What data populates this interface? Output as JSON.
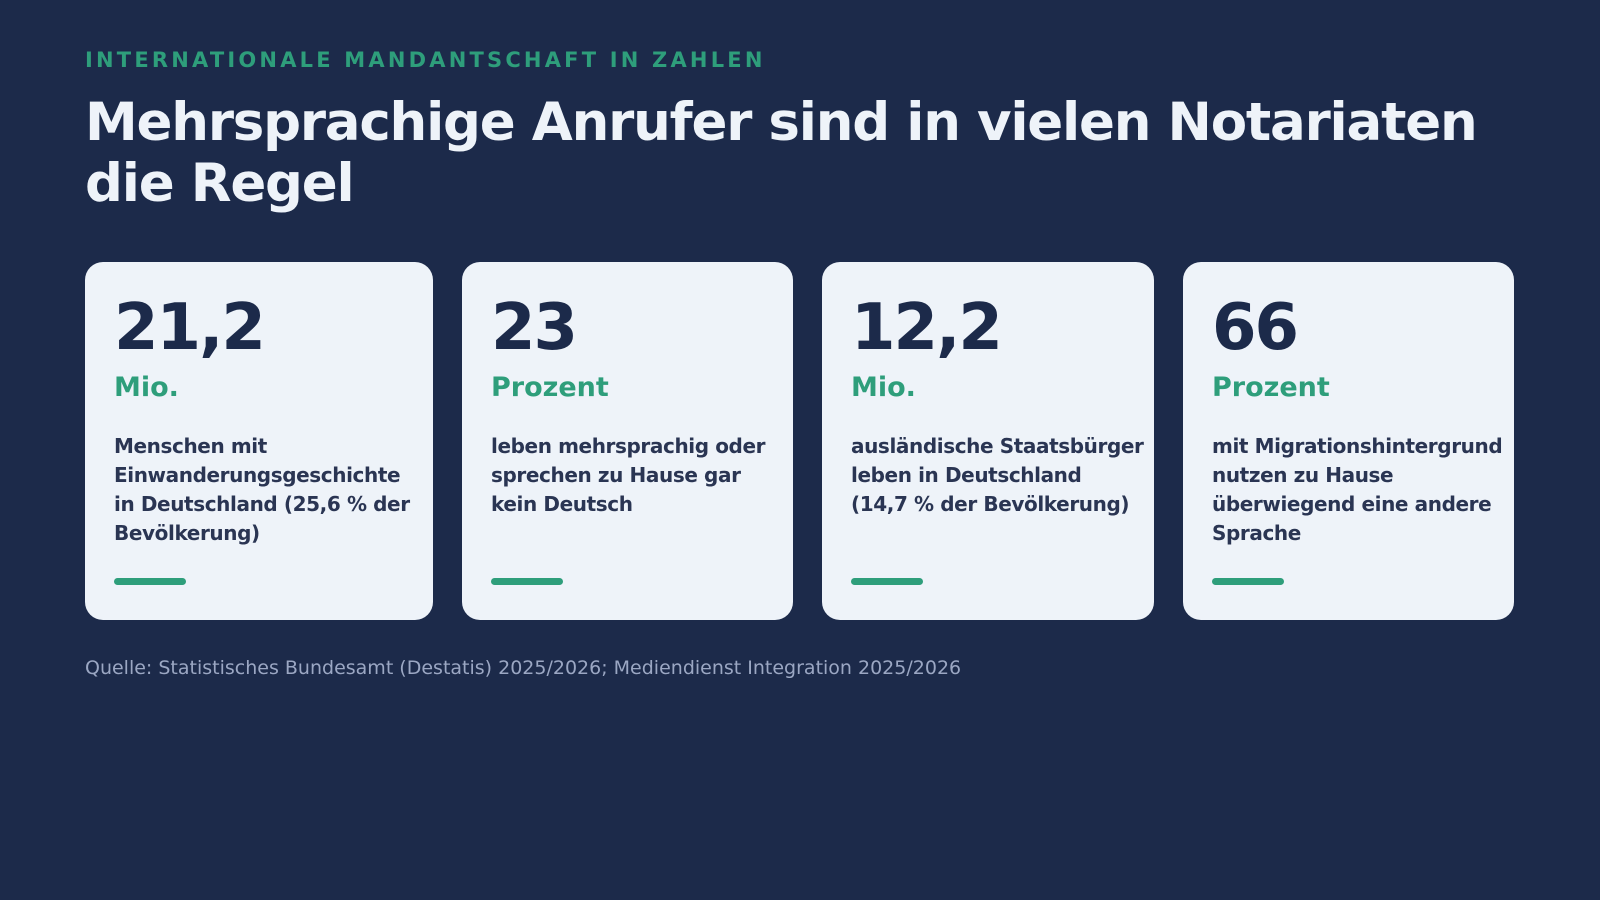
{
  "header": {
    "eyebrow": "INTERNATIONALE MANDANTSCHAFT IN ZAHLEN",
    "title": "Mehrsprachige Anrufer sind in vielen Notariaten die Regel"
  },
  "stats": [
    {
      "value": "21,2",
      "unit": "Mio.",
      "description": "Menschen mit Einwanderungsgeschichte in Deutschland (25,6 % der Bevölkerung)"
    },
    {
      "value": "23",
      "unit": "Prozent",
      "description": "leben mehrsprachig oder sprechen zu Hause gar kein Deutsch"
    },
    {
      "value": "12,2",
      "unit": "Mio.",
      "description": "ausländische Staatsbürger leben in Deutschland (14,7 % der Bevölkerung)"
    },
    {
      "value": "66",
      "unit": "Prozent",
      "description": "mit Migrationshintergrund nutzen zu Hause überwiegend eine andere Sprache"
    }
  ],
  "footer": {
    "source": "Quelle: Statistisches Bundesamt (Destatis) 2025/2026; Mediendienst Integration 2025/2026"
  },
  "colors": {
    "background": "#1c2a4a",
    "accent": "#2e9e7b",
    "card": "#eef3f9",
    "muted_text": "#9ba7c3"
  }
}
